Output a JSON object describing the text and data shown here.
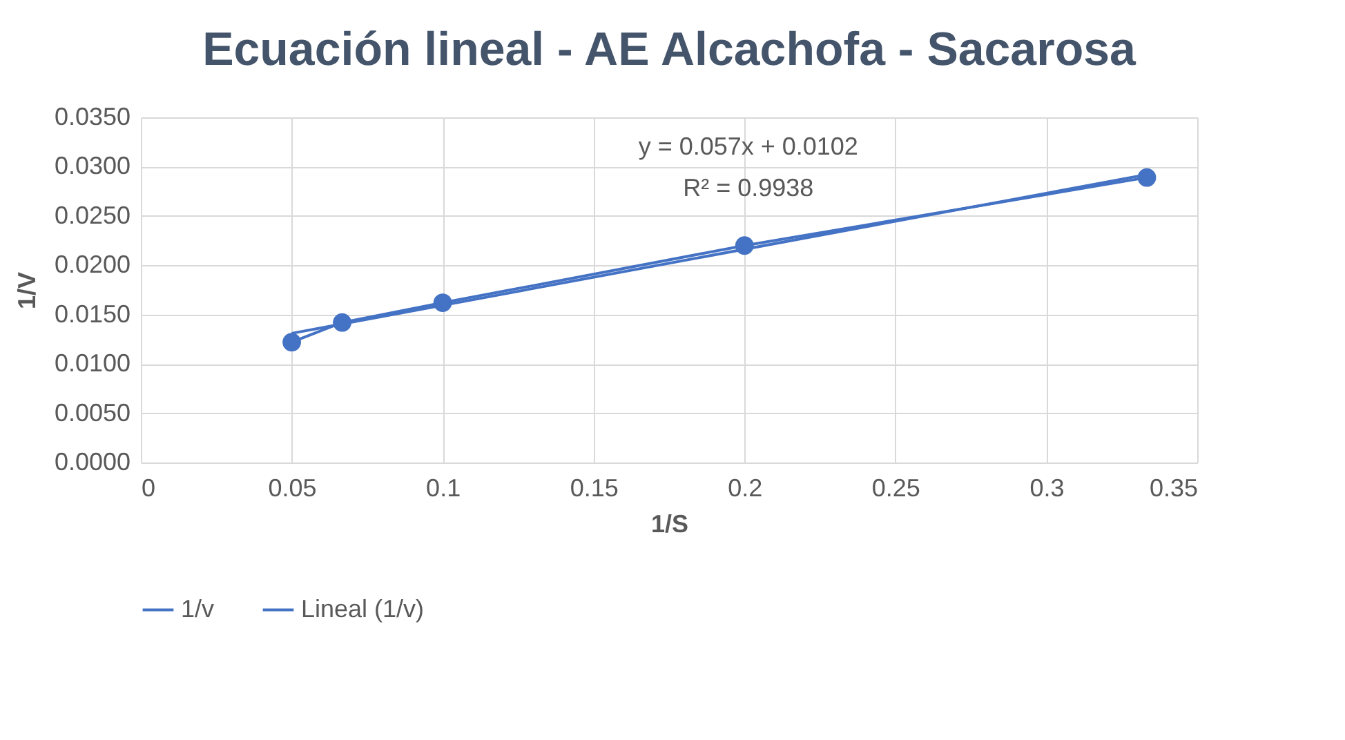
{
  "chart_data": {
    "type": "line",
    "title": "Ecuación lineal - AE Alcachofa - Sacarosa",
    "xlabel": "1/S",
    "ylabel": "1/V",
    "annotations": [
      "y = 0.057x + 0.0102",
      "R² = 0.9938"
    ],
    "series": [
      {
        "name": "1/v",
        "color": "#4472c4",
        "type": "line",
        "marker": "circle",
        "x": [
          0.05,
          0.0667,
          0.1,
          0.2,
          0.3333
        ],
        "values": [
          0.0122,
          0.0142,
          0.0162,
          0.022,
          0.0289
        ]
      },
      {
        "name": "Lineal (1/v)",
        "color": "#4472c4",
        "type": "line",
        "marker": "none",
        "x": [
          0.05,
          0.3333
        ],
        "values": [
          0.0131,
          0.0292
        ]
      }
    ],
    "xlim": [
      0,
      0.35
    ],
    "xticks": [
      0,
      0.05,
      0.1,
      0.15,
      0.2,
      0.25,
      0.3,
      0.35
    ],
    "ylim": [
      0,
      0.035
    ],
    "yticks": [
      {
        "value": 0,
        "label": "0.0000"
      },
      {
        "value": 0.005,
        "label": "0.0050"
      },
      {
        "value": 0.01,
        "label": "0.0100"
      },
      {
        "value": 0.015,
        "label": "0.0150"
      },
      {
        "value": 0.02,
        "label": "0.0200"
      },
      {
        "value": 0.025,
        "label": "0.0250"
      },
      {
        "value": 0.03,
        "label": "0.0300"
      },
      {
        "value": 0.035,
        "label": "0.0350"
      }
    ],
    "grid": true,
    "legend": "bottom"
  }
}
